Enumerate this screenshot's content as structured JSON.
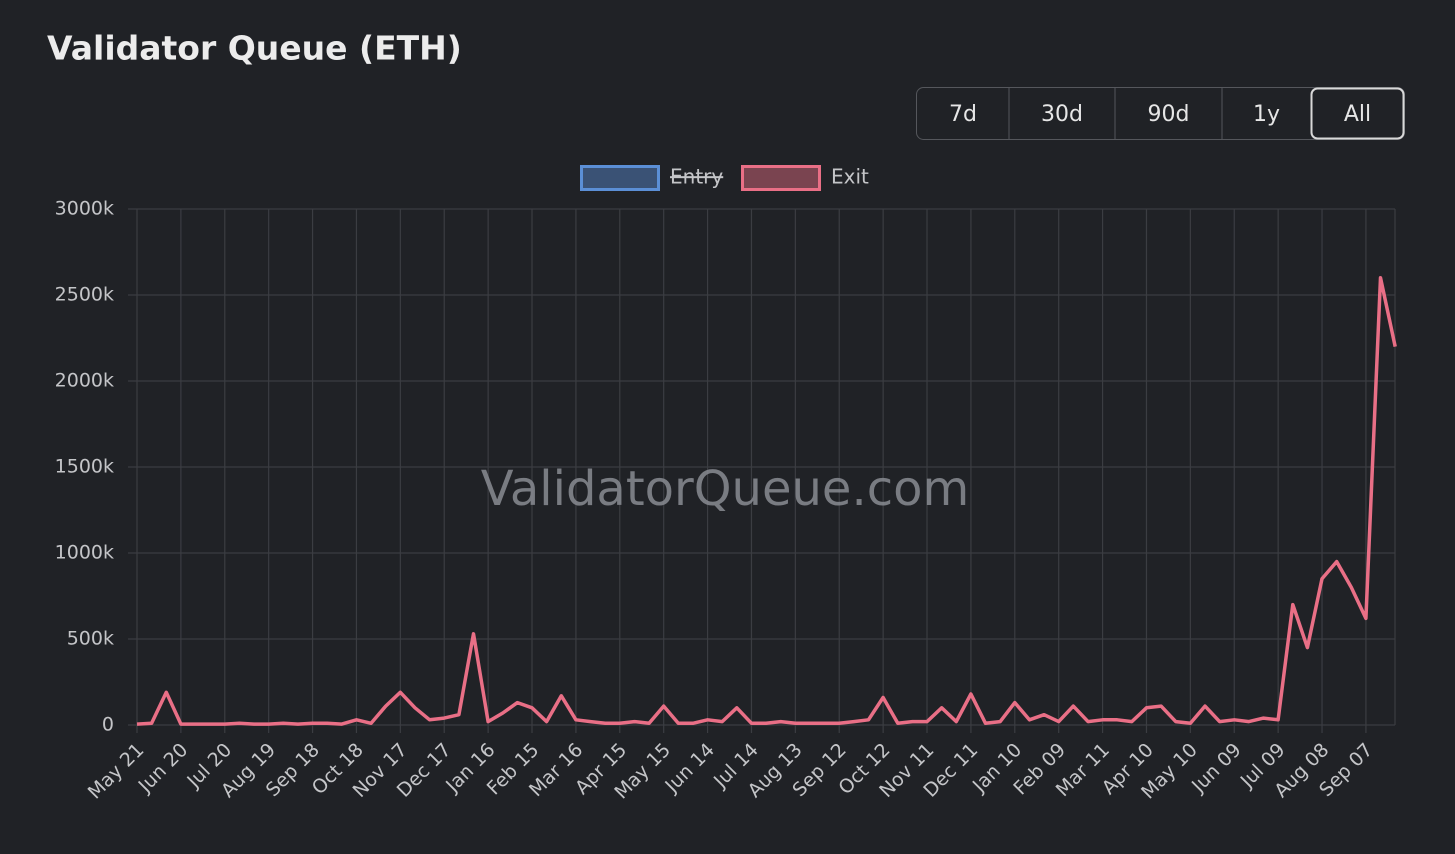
{
  "chart_data": {
    "type": "line",
    "title": "Validator Queue (ETH)",
    "watermark": "ValidatorQueue.com",
    "range_buttons": {
      "options": [
        "7d",
        "30d",
        "90d",
        "1y",
        "All"
      ],
      "active": "All"
    },
    "categories": [
      "May 21",
      null,
      null,
      "Jun 20",
      null,
      null,
      "Jul 20",
      null,
      null,
      "Aug 19",
      null,
      null,
      "Sep 18",
      null,
      null,
      "Oct 18",
      null,
      null,
      "Nov 17",
      null,
      null,
      "Dec 17",
      null,
      null,
      "Jan 16",
      null,
      null,
      "Feb 15",
      null,
      null,
      "Mar 16",
      null,
      null,
      "Apr 15",
      null,
      null,
      "May 15",
      null,
      null,
      "Jun 14",
      null,
      null,
      "Jul 14",
      null,
      null,
      "Aug 13",
      null,
      null,
      "Sep 12",
      null,
      null,
      "Oct 12",
      null,
      null,
      "Nov 11",
      null,
      null,
      "Dec 11",
      null,
      null,
      "Jan 10",
      null,
      null,
      "Feb 09",
      null,
      null,
      "Mar 11",
      null,
      null,
      "Apr 10",
      null,
      null,
      "May 10",
      null,
      null,
      "Jun 09",
      null,
      null,
      "Jul 09",
      null,
      null,
      "Aug 08",
      null,
      null,
      "Sep 07",
      null,
      null
    ],
    "series": [
      {
        "name": "Entry",
        "color": "#5b8fd6",
        "hidden": true,
        "values": [
          null,
          null,
          null,
          null,
          null,
          null,
          null,
          null,
          null,
          null,
          null,
          null,
          null,
          null,
          null,
          null,
          null,
          null,
          null,
          null,
          null,
          null,
          null,
          null,
          null,
          null,
          null,
          null,
          null,
          null,
          null,
          null,
          null,
          null,
          null,
          null,
          null,
          null,
          null,
          null,
          null,
          null,
          null,
          null,
          null,
          null,
          null,
          null,
          null,
          null,
          null,
          null,
          null,
          null,
          null,
          null,
          null,
          null,
          null,
          null,
          null,
          null,
          null,
          null,
          null,
          null,
          null,
          null,
          null,
          null,
          null,
          null,
          null,
          null,
          null,
          null,
          null,
          null,
          null,
          null,
          null,
          null,
          null,
          null,
          null,
          null,
          null
        ]
      },
      {
        "name": "Exit",
        "color": "#e96f86",
        "hidden": false,
        "values": [
          5,
          10,
          190,
          5,
          5,
          5,
          5,
          10,
          5,
          5,
          10,
          5,
          10,
          10,
          5,
          30,
          10,
          110,
          190,
          100,
          30,
          40,
          60,
          530,
          20,
          70,
          130,
          100,
          20,
          170,
          30,
          20,
          10,
          10,
          20,
          10,
          110,
          10,
          10,
          30,
          20,
          100,
          10,
          10,
          20,
          10,
          10,
          10,
          10,
          20,
          30,
          160,
          10,
          20,
          20,
          100,
          20,
          180,
          10,
          20,
          130,
          30,
          60,
          20,
          110,
          20,
          30,
          30,
          20,
          100,
          110,
          20,
          10,
          110,
          20,
          30,
          20,
          40,
          30,
          700,
          450,
          850,
          950,
          800,
          620,
          2600,
          2200
        ]
      }
    ],
    "ylim": [
      0,
      3000
    ],
    "yticks": [
      0,
      {
        "value": 500,
        "label": "500k"
      },
      {
        "value": 1000,
        "label": "1000k"
      },
      {
        "value": 1500,
        "label": "1500k"
      },
      {
        "value": 2000,
        "label": "2000k"
      },
      {
        "value": 2500,
        "label": "2500k"
      },
      {
        "value": 3000,
        "label": "3000k"
      }
    ],
    "grid": true
  }
}
